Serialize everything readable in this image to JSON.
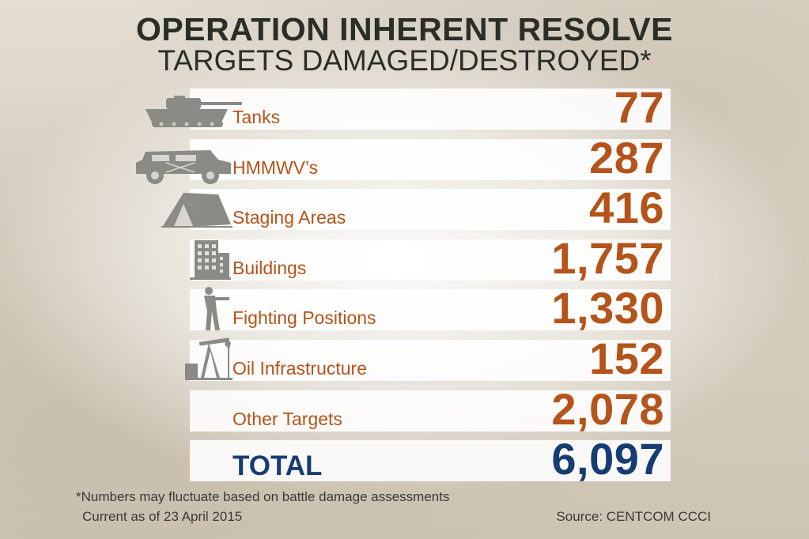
{
  "chart_data": {
    "type": "table",
    "title": "OPERATION INHERENT RESOLVE",
    "subtitle": "TARGETS DAMAGED/DESTROYED*",
    "rows": [
      {
        "label": "Tanks",
        "value": "77",
        "icon": "tank-icon"
      },
      {
        "label": "HMMWV’s",
        "value": "287",
        "icon": "humvee-icon"
      },
      {
        "label": "Staging Areas",
        "value": "416",
        "icon": "tent-icon"
      },
      {
        "label": "Buildings",
        "value": "1,757",
        "icon": "building-icon"
      },
      {
        "label": "Fighting Positions",
        "value": "1,330",
        "icon": "soldier-icon"
      },
      {
        "label": "Oil Infrastructure",
        "value": "152",
        "icon": "oil-pump-icon"
      },
      {
        "label": "Other Targets",
        "value": "2,078",
        "icon": ""
      }
    ],
    "total": {
      "label": "TOTAL",
      "value": "6,097"
    },
    "footnote": "*Numbers may fluctuate based on battle damage assessments",
    "date_note": "Current as of 23 April 2015",
    "source": "Source: CENTCOM CCCI"
  },
  "colors": {
    "title": "#2b2e27",
    "category_text": "#b4531a",
    "total_text": "#163d73",
    "icon": "#8a8a86"
  }
}
